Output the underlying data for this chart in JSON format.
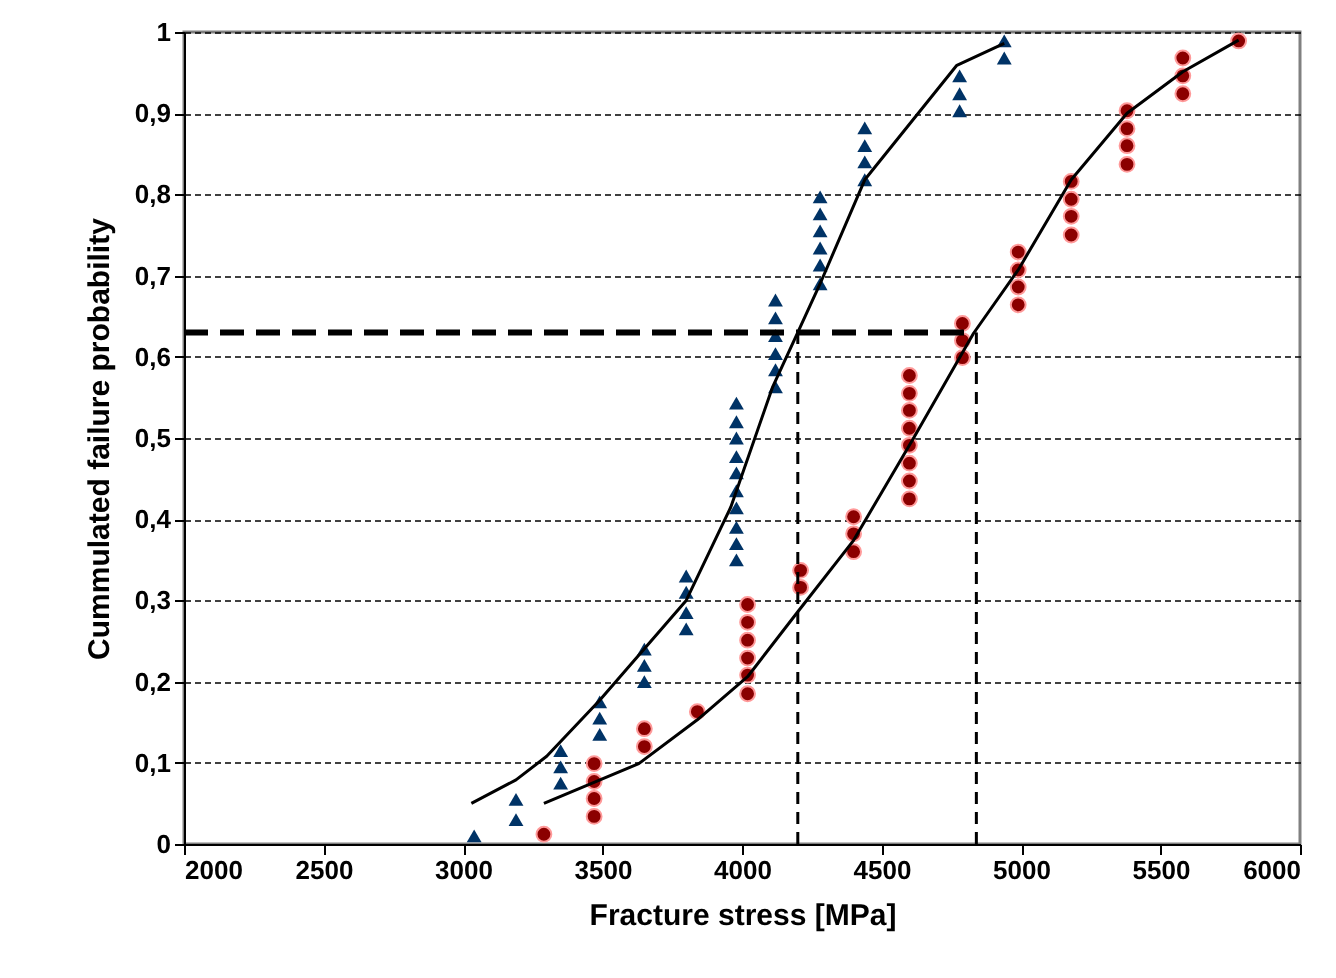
{
  "chart_data": {
    "type": "scatter",
    "xlabel": "Fracture stress [MPa]",
    "ylabel": "Cummulated failure probability",
    "xlim": [
      2000,
      6000
    ],
    "ylim": [
      0,
      1
    ],
    "xticks": [
      2000,
      2500,
      3000,
      3500,
      4000,
      4500,
      5000,
      5500,
      6000
    ],
    "yticks": [
      0,
      {
        "value": 0.1,
        "label": "0,1"
      },
      {
        "value": 0.2,
        "label": "0,2"
      },
      {
        "value": 0.3,
        "label": "0,3"
      },
      {
        "value": 0.4,
        "label": "0,4"
      },
      {
        "value": 0.5,
        "label": "0,5"
      },
      {
        "value": 0.6,
        "label": "0,6"
      },
      {
        "value": 0.7,
        "label": "0,7"
      },
      {
        "value": 0.8,
        "label": "0,8"
      },
      {
        "value": 0.9,
        "label": "0,9"
      },
      1
    ],
    "grid": "y",
    "series": [
      {
        "marker": "triangle",
        "color": "#003366",
        "x": [
          3040,
          3190,
          3190,
          3350,
          3350,
          3350,
          3490,
          3490,
          3490,
          3650,
          3650,
          3650,
          3800,
          3800,
          3800,
          3800,
          3980,
          3980,
          3980,
          3980,
          3980,
          3980,
          3980,
          3980,
          3980,
          3980,
          4120,
          4120,
          4120,
          4120,
          4120,
          4120,
          4280,
          4280,
          4280,
          4280,
          4280,
          4280,
          4440,
          4440,
          4440,
          4440,
          4780,
          4780,
          4780,
          4940,
          4940
        ],
        "values": [
          0.01,
          0.03,
          0.055,
          0.075,
          0.095,
          0.115,
          0.135,
          0.155,
          0.175,
          0.2,
          0.22,
          0.24,
          0.265,
          0.285,
          0.31,
          0.33,
          0.35,
          0.37,
          0.39,
          0.414,
          0.435,
          0.457,
          0.477,
          0.5,
          0.52,
          0.543,
          0.563,
          0.584,
          0.604,
          0.626,
          0.648,
          0.67,
          0.69,
          0.713,
          0.734,
          0.755,
          0.776,
          0.797,
          0.818,
          0.84,
          0.86,
          0.882,
          0.903,
          0.924,
          0.946,
          0.968,
          0.989
        ]
      },
      {
        "marker": "circle",
        "color": "#8b0000",
        "x": [
          3290,
          3470,
          3470,
          3470,
          3470,
          3650,
          3650,
          3840,
          4020,
          4020,
          4020,
          4020,
          4020,
          4020,
          4210,
          4210,
          4400,
          4400,
          4400,
          4600,
          4600,
          4600,
          4600,
          4600,
          4600,
          4600,
          4600,
          4790,
          4790,
          4790,
          4990,
          4990,
          4990,
          4990,
          5180,
          5180,
          5180,
          5180,
          5380,
          5380,
          5380,
          5380,
          5580,
          5580,
          5580,
          5780
        ],
        "values": [
          0.012,
          0.034,
          0.056,
          0.077,
          0.099,
          0.12,
          0.142,
          0.163,
          0.185,
          0.208,
          0.229,
          0.251,
          0.273,
          0.295,
          0.316,
          0.337,
          0.36,
          0.382,
          0.403,
          0.425,
          0.447,
          0.469,
          0.491,
          0.512,
          0.534,
          0.555,
          0.577,
          0.599,
          0.62,
          0.641,
          0.664,
          0.686,
          0.707,
          0.729,
          0.75,
          0.773,
          0.794,
          0.816,
          0.837,
          0.86,
          0.881,
          0.903,
          0.924,
          0.946,
          0.968,
          0.989
        ]
      },
      {
        "type": "line",
        "marker": "none",
        "line_style": "solid",
        "color": "#000000",
        "x": [
          3030,
          3190,
          3300,
          3490,
          3800,
          3960,
          4110,
          4200,
          4280,
          4440,
          4770,
          4940
        ],
        "values": [
          0.05,
          0.079,
          0.108,
          0.177,
          0.3,
          0.415,
          0.563,
          0.63,
          0.69,
          0.818,
          0.959,
          0.986
        ]
      },
      {
        "type": "line",
        "marker": "none",
        "line_style": "solid",
        "color": "#000000",
        "x": [
          3290,
          3630,
          3840,
          4020,
          4200,
          4400,
          4610,
          4830,
          4990,
          5180,
          5380,
          5580,
          5780
        ],
        "values": [
          0.05,
          0.099,
          0.153,
          0.206,
          0.286,
          0.374,
          0.497,
          0.629,
          0.707,
          0.818,
          0.9,
          0.951,
          0.99
        ]
      }
    ],
    "ref_lines": [
      {
        "axis": "y",
        "value": 0.63,
        "color": "#000000",
        "line_style": "dashed"
      },
      {
        "axis": "x",
        "value": 4200,
        "color": "#000000",
        "line_style": "dashed"
      },
      {
        "axis": "x",
        "value": 4840,
        "color": "#000000",
        "line_style": "dashed"
      }
    ]
  }
}
